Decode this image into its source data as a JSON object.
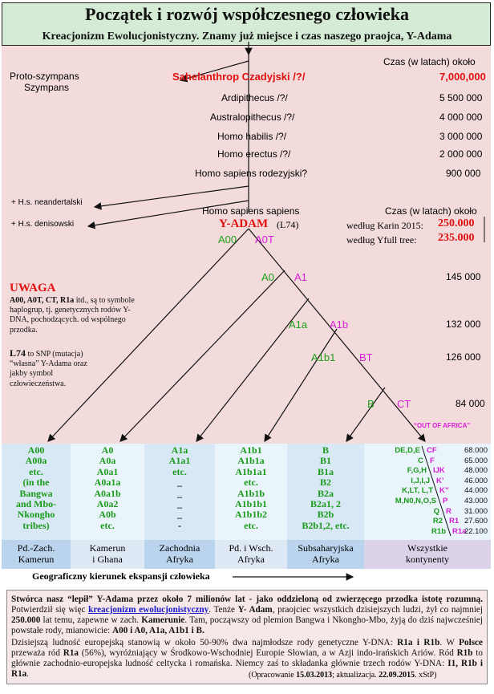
{
  "header": {
    "title": "Początek i rozwój współczesnego człowieka",
    "subtitle": "Kreacjonizm Ewolucjonistyczny. Znamy już miejsce i czas naszego praojca,  Y-Adama"
  },
  "timeline": {
    "proto_chimp": "Proto-szympans",
    "chimp": "Szympans",
    "time_header": "Czas (w latach) około",
    "species": [
      {
        "name": "Sahelanthrop Czadyjski /?/",
        "years": "7,000,000"
      },
      {
        "name": "Ardipithecus /?/",
        "years": "5 500 000"
      },
      {
        "name": "Australopithecus /?/",
        "years": "4 000 000"
      },
      {
        "name": "Homo habilis /?/",
        "years": "3 000 000"
      },
      {
        "name": "Homo erectus /?/",
        "years": "2 000 000"
      },
      {
        "name": "Homo sapiens rodezyjski?",
        "years": "900 000"
      }
    ],
    "neanderthal": "+ H.s. neandertalski",
    "denisovan": "+ H.s. denisowski"
  },
  "y_adam": {
    "hss": "Homo sapiens sapiens",
    "name": "Y-ADAM",
    "snp": "(L74)",
    "time_header": "Czas (w latach) około",
    "karin_label": "według Karin 2015:",
    "karin_value": "250.000",
    "yfull_label": "według Yfull tree:",
    "yfull_value": "235.000"
  },
  "tree": {
    "nodes": [
      {
        "left": "A00",
        "right": "A0T",
        "years": ""
      },
      {
        "left": "A0",
        "right": "A1",
        "years": "145 000"
      },
      {
        "left": "A1a",
        "right": "A1b",
        "years": "132 000"
      },
      {
        "left": "A1b1",
        "right": "BT",
        "years": "126 000"
      },
      {
        "left": "B",
        "right": "CT",
        "years": "84 000"
      }
    ],
    "out_of_africa": "“OUT OF AFRICA”"
  },
  "note": {
    "title": "UWAGA",
    "lead": "A00, A0T, CT, R1a",
    "text1": " itd., są to symbole haplogrup, tj. genetycznych rodów Y-DNA, pochodzących. od wspólnego przodka.",
    "lead2": "L74",
    "text2": " to SNP (mutacja) “własna” Y-Adama oraz jakby symbol człowieczeństwa."
  },
  "columns": [
    {
      "items": [
        "A00",
        "A00a",
        "etc.",
        "(in the",
        "Bangwa",
        "and Mbo-",
        "Nkongho",
        "tribes)"
      ],
      "footer": [
        "Pd.-Zach.",
        "Kamerun"
      ]
    },
    {
      "items": [
        "A0",
        "A0a",
        "A0a1",
        "A0a1a",
        "A0a1b",
        "A0a2",
        "A0b",
        "etc."
      ],
      "footer": [
        "Kamerun",
        "i Ghana"
      ]
    },
    {
      "items": [
        "A1a",
        "A1a1",
        "etc.",
        "_",
        "_",
        "_",
        "_",
        "-"
      ],
      "footer": [
        "Zachodnia",
        "Afryka"
      ]
    },
    {
      "items": [
        "A1b1",
        "A1b1a",
        "A1b1a1",
        "etc.",
        "A1b1b",
        "A1b1b1",
        "A1b1b2",
        "etc."
      ],
      "footer": [
        "Pd. i Wsch.",
        "Afryka"
      ]
    },
    {
      "items": [
        "B",
        "B1",
        "B1a",
        "B2",
        "B2a",
        "B2a1, 2",
        "B2b",
        "B2b1,2, etc."
      ],
      "footer": [
        "Subsaharyjska",
        "Afryka"
      ]
    },
    {
      "items": [],
      "footer": [
        "Wszystkie",
        "kontynenty"
      ]
    }
  ],
  "haplo_table": [
    {
      "left": "DE,D,E",
      "right": "CF",
      "years": "68.000"
    },
    {
      "left": "C",
      "right": "F",
      "years": "65.000"
    },
    {
      "left": "F,G,H",
      "right": "IJK",
      "years": "48.000"
    },
    {
      "left": "I,J,I,J",
      "right": "K’",
      "years": "46.000"
    },
    {
      "left": "K,LT, L,T",
      "right": "K’’",
      "years": "44.000"
    },
    {
      "left": "M,N0,N,O,S",
      "right": "P",
      "years": "43.000"
    },
    {
      "left": "Q",
      "right": "R",
      "years": "31.000"
    },
    {
      "left": "R2",
      "right": "R1",
      "years": "27.600"
    },
    {
      "left": "R1b",
      "right": "R1a",
      "years": "22.100"
    }
  ],
  "geo_direction": "Geograficzny kierunek ekspansji człowieka",
  "footer_text": {
    "p1_a": "Stwórca nasz “lepił” Y-Adama  przez około 7 milionów lat - jako oddzieloną od zwierzęcego przodka istotę rozumną.",
    "p1_b": " Potwierdził się więc ",
    "p1_link": "kreacjonizm ewolucjonistyczny",
    "p1_c": ". Tenże ",
    "p1_d": "Y- Adam",
    "p1_e": ", praojciec wszystkich dzisiejszych ludzi, żył co najmniej ",
    "p1_f": "250.000",
    "p1_g": " lat temu, zapewne w zach. ",
    "p1_h": "Kamerunie",
    "p1_i": ". Tam, począwszy od plemion Bangwa i Nkongho-Mbo, żyją do dziś najwcześniej powstałe rody, mianowicie: ",
    "p1_j": "A00 i A0, A1a, A1b1 i B.",
    "p2_a": "Dzisiejszą ludność europejską stanowią w około 50-90% dwa najmłodsze rody genetyczne Y-DNA: ",
    "p2_b": "R1a i R1b",
    "p2_c": ". W ",
    "p2_d": "Polsce",
    "p2_e": " przeważa ród ",
    "p2_f": "R1a",
    "p2_g": " (56%), wyróżniający w Środkowo-Wschodniej Europie Słowian, a w Azji indo-irańskich Ariów. Ród ",
    "p2_h": "R1b",
    "p2_i": " to głównie zachodnio-europejska ludność celtycka i romańska. Niemcy zaś to składanka głównie trzech rodów Y-DNA: ",
    "p2_j": "I1, R1b i R1a",
    "p2_k": ".",
    "credit_a": "(Opracowanie ",
    "credit_b": "15.03.2013",
    "credit_c": ";  aktualizacja. ",
    "credit_d": "22.09.2015",
    "credit_e": ". xStP)"
  },
  "colors": {
    "header_bg": "#d5ebd5",
    "pink_bg": "#f3dbdb",
    "green": "#1aa01a",
    "magenta": "#d61fd6",
    "red": "#e01010"
  }
}
